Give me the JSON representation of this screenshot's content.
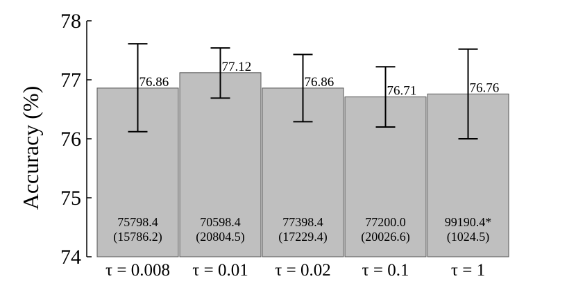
{
  "chart_data": {
    "type": "bar",
    "title": "",
    "xlabel": "",
    "ylabel": "Accuracy (%)",
    "ylim": [
      74,
      78
    ],
    "yticks": [
      "74",
      "75",
      "76",
      "77",
      "78"
    ],
    "grid": false,
    "bar_color": "#bfbfbf",
    "categories": [
      "τ = 0.008",
      "τ = 0.01",
      "τ = 0.02",
      "τ = 0.1",
      "τ = 1"
    ],
    "values": [
      76.86,
      77.12,
      76.86,
      76.71,
      76.76
    ],
    "value_labels": [
      "76.86",
      "77.12",
      "76.86",
      "76.71",
      "76.76"
    ],
    "error_low": [
      76.12,
      76.69,
      76.29,
      76.2,
      76.0
    ],
    "error_high": [
      77.61,
      77.54,
      77.43,
      77.22,
      77.52
    ],
    "annotations_line1": [
      "75798.4",
      "70598.4",
      "77398.4",
      "77200.0",
      "99190.4*"
    ],
    "annotations_line2": [
      "(15786.2)",
      "(20804.5)",
      "(17229.4)",
      "(20026.6)",
      "(1024.5)"
    ]
  }
}
